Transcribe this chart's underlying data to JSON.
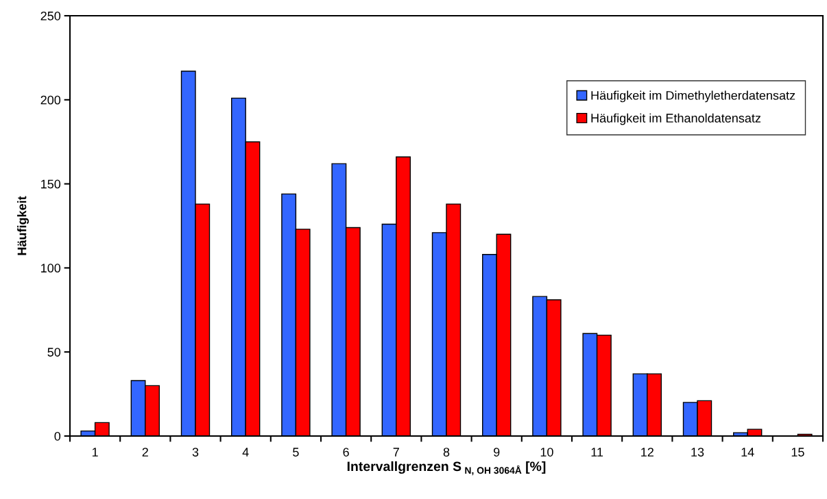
{
  "chart_data": {
    "type": "bar",
    "xlabel": "Intervallgrenzen S$_{N, OH 3064Å}$ [%]",
    "ylabel": "Häufigkeit",
    "categories": [
      "1",
      "2",
      "3",
      "4",
      "5",
      "6",
      "7",
      "8",
      "9",
      "10",
      "11",
      "12",
      "13",
      "14",
      "15"
    ],
    "series": [
      {
        "name": "Häufigkeit im Dimethyletherdatensatz",
        "color": "#3366ff",
        "values": [
          3,
          33,
          217,
          201,
          144,
          162,
          126,
          121,
          108,
          83,
          61,
          37,
          20,
          2,
          0
        ]
      },
      {
        "name": "Häufigkeit im Ethanoldatensatz",
        "color": "#ff0000",
        "values": [
          8,
          30,
          138,
          175,
          123,
          124,
          166,
          138,
          120,
          81,
          60,
          37,
          21,
          4,
          1
        ]
      }
    ],
    "ylim": [
      0,
      250
    ],
    "yticks": [
      0,
      50,
      100,
      150,
      200,
      250
    ],
    "grid": false,
    "legend": "top right"
  }
}
